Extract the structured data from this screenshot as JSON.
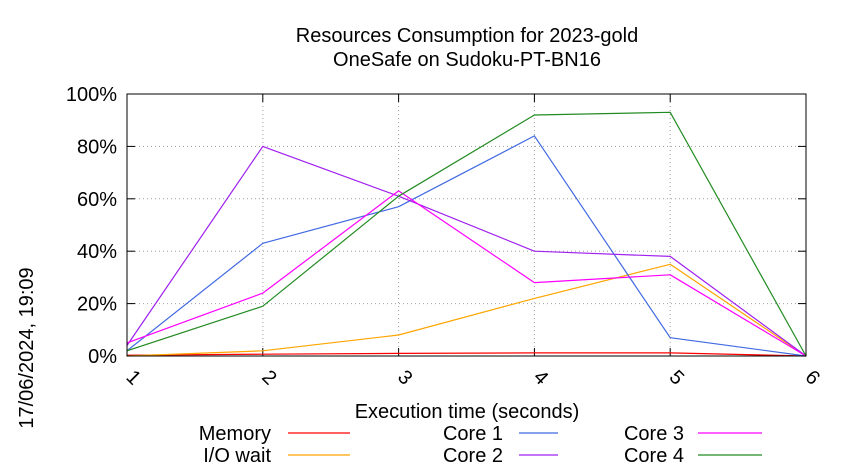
{
  "chart_data": {
    "type": "line",
    "title": [
      "Resources Consumption for 2023-gold",
      "OneSafe on Sudoku-PT-BN16"
    ],
    "xlabel": "Execution time (seconds)",
    "ylabel": "",
    "side_label": "17/06/2024, 19:09",
    "x": [
      1,
      2,
      3,
      4,
      5,
      6
    ],
    "x_ticks": [
      "1",
      "2",
      "3",
      "4",
      "5",
      "6"
    ],
    "y_ticks": [
      "0%",
      "20%",
      "40%",
      "60%",
      "80%",
      "100%"
    ],
    "xlim": [
      1,
      6
    ],
    "ylim": [
      0,
      100
    ],
    "grid": true,
    "legend_position": "bottom",
    "series": [
      {
        "name": "Memory",
        "color": "#ff0000",
        "values": [
          0.3,
          0.7,
          1.0,
          1.2,
          1.2,
          0
        ]
      },
      {
        "name": "I/O wait",
        "color": "#ffa500",
        "values": [
          0,
          2,
          8,
          22,
          35,
          0
        ]
      },
      {
        "name": "Core 1",
        "color": "#4169e1",
        "values": [
          2,
          43,
          57,
          84,
          7,
          0
        ]
      },
      {
        "name": "Core 2",
        "color": "#a020f0",
        "values": [
          4,
          80,
          61,
          40,
          38,
          0
        ]
      },
      {
        "name": "Core 3",
        "color": "#ff00ff",
        "values": [
          5,
          24,
          63,
          28,
          31,
          0
        ]
      },
      {
        "name": "Core 4",
        "color": "#228b22",
        "values": [
          2,
          19,
          61,
          92,
          93,
          0
        ]
      }
    ]
  }
}
